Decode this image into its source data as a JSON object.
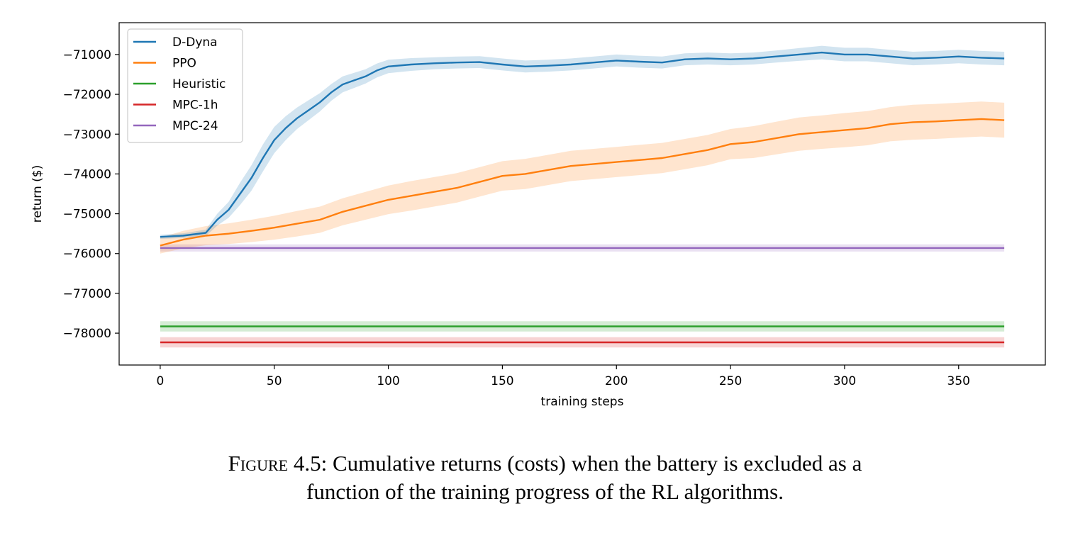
{
  "chart_data": {
    "type": "line",
    "xlabel": "training steps",
    "ylabel": "return  ($)",
    "xlim": [
      -18,
      388
    ],
    "ylim": [
      -78800,
      -70200
    ],
    "xticks": [
      0,
      50,
      100,
      150,
      200,
      250,
      300,
      350
    ],
    "yticks": [
      -71000,
      -72000,
      -73000,
      -74000,
      -75000,
      -76000,
      -77000,
      -78000
    ],
    "grid": false,
    "legend_position": "top-left",
    "series": [
      {
        "name": "D-Dyna",
        "color": "#1f77b4",
        "x": [
          0,
          10,
          20,
          25,
          30,
          35,
          40,
          45,
          50,
          55,
          60,
          65,
          70,
          75,
          80,
          85,
          90,
          95,
          100,
          110,
          120,
          130,
          140,
          150,
          160,
          170,
          180,
          190,
          200,
          210,
          220,
          230,
          240,
          250,
          260,
          270,
          280,
          290,
          300,
          310,
          320,
          330,
          340,
          350,
          360,
          370
        ],
        "y": [
          -75580,
          -75550,
          -75480,
          -75150,
          -74900,
          -74500,
          -74100,
          -73600,
          -73150,
          -72850,
          -72600,
          -72400,
          -72200,
          -71950,
          -71750,
          -71650,
          -71550,
          -71400,
          -71300,
          -71250,
          -71220,
          -71200,
          -71190,
          -71250,
          -71300,
          -71280,
          -71250,
          -71200,
          -71150,
          -71180,
          -71200,
          -71120,
          -71100,
          -71120,
          -71100,
          -71050,
          -71000,
          -70950,
          -71000,
          -71000,
          -71050,
          -71100,
          -71080,
          -71050,
          -71080,
          -71100
        ],
        "band_halfwidth": [
          50,
          60,
          80,
          150,
          200,
          280,
          320,
          340,
          330,
          300,
          270,
          250,
          230,
          210,
          200,
          190,
          180,
          175,
          170,
          160,
          150,
          150,
          150,
          150,
          150,
          150,
          150,
          150,
          150,
          150,
          150,
          150,
          150,
          150,
          150,
          150,
          160,
          170,
          170,
          170,
          170,
          170,
          170,
          170,
          170,
          170
        ]
      },
      {
        "name": "PPO",
        "color": "#ff7f0e",
        "x": [
          0,
          10,
          20,
          30,
          40,
          50,
          60,
          70,
          80,
          90,
          100,
          110,
          120,
          130,
          140,
          150,
          160,
          170,
          180,
          190,
          200,
          210,
          220,
          230,
          240,
          250,
          260,
          270,
          280,
          290,
          300,
          310,
          320,
          330,
          340,
          350,
          360,
          370
        ],
        "y": [
          -75800,
          -75650,
          -75550,
          -75500,
          -75430,
          -75350,
          -75250,
          -75150,
          -74950,
          -74800,
          -74650,
          -74550,
          -74450,
          -74350,
          -74200,
          -74050,
          -74000,
          -73900,
          -73800,
          -73750,
          -73700,
          -73650,
          -73600,
          -73500,
          -73400,
          -73250,
          -73200,
          -73100,
          -73000,
          -72950,
          -72900,
          -72850,
          -72750,
          -72700,
          -72680,
          -72650,
          -72620,
          -72650
        ],
        "band_halfwidth": [
          200,
          220,
          240,
          260,
          280,
          300,
          320,
          330,
          340,
          350,
          360,
          370,
          370,
          370,
          370,
          370,
          380,
          380,
          380,
          380,
          380,
          380,
          380,
          380,
          380,
          380,
          400,
          410,
          420,
          420,
          430,
          430,
          430,
          440,
          440,
          440,
          440,
          440
        ]
      },
      {
        "name": "Heuristic",
        "color": "#2ca02c",
        "x": [
          0,
          370
        ],
        "y": [
          -77830,
          -77830
        ],
        "band_halfwidth": [
          130,
          130
        ]
      },
      {
        "name": "MPC-1h",
        "color": "#d62728",
        "x": [
          0,
          370
        ],
        "y": [
          -78230,
          -78230
        ],
        "band_halfwidth": [
          130,
          130
        ]
      },
      {
        "name": "MPC-24",
        "color": "#9467bd",
        "x": [
          0,
          370
        ],
        "y": [
          -75860,
          -75860
        ],
        "band_halfwidth": [
          90,
          90
        ]
      }
    ]
  },
  "caption": {
    "prefix": "Figure 4.5:",
    "line1": " Cumulative returns (costs) when the battery is excluded as a",
    "line2": "function of the training progress of the RL algorithms."
  }
}
